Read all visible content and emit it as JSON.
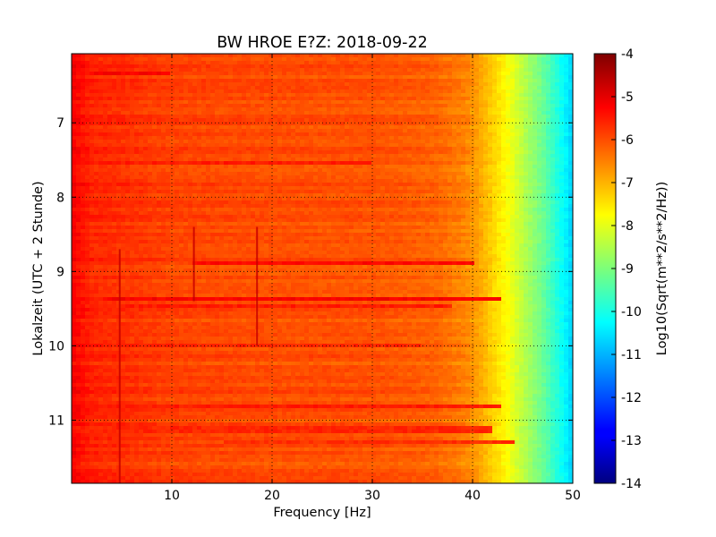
{
  "chart_data": {
    "type": "heatmap",
    "title": "BW HROE E?Z: 2018-09-22",
    "xlabel": "Frequency [Hz]",
    "ylabel": "Lokalzeit (UTC + 2 Stunde)",
    "xlim": [
      0,
      50
    ],
    "ylim": [
      11.85,
      6.07
    ],
    "xticks": [
      "10",
      "20",
      "30",
      "40",
      "50"
    ],
    "xtick_values": [
      10,
      20,
      30,
      40,
      50
    ],
    "yticks": [
      "7",
      "8",
      "9",
      "10",
      "11"
    ],
    "ytick_values": [
      7,
      8,
      9,
      10,
      11
    ],
    "grid": true,
    "colormap": "jet",
    "colorbar": {
      "label": "Log10(Sqrt(m**2/s**2/Hz))",
      "min": -14,
      "max": -4,
      "ticks": [
        "-4",
        "-5",
        "-6",
        "-7",
        "-8",
        "-9",
        "-10",
        "-11",
        "-12",
        "-13",
        "-14"
      ],
      "tick_values": [
        -4,
        -5,
        -6,
        -7,
        -8,
        -9,
        -10,
        -11,
        -12,
        -13,
        -14
      ]
    },
    "spectral_profile": {
      "frequency_hz": [
        0,
        0.5,
        2,
        5,
        10,
        20,
        30,
        36,
        39,
        40.5,
        42,
        43.5,
        45,
        47,
        49,
        50
      ],
      "log_amplitude": [
        -5.2,
        -5.3,
        -5.6,
        -5.7,
        -5.9,
        -6.0,
        -6.05,
        -6.2,
        -6.5,
        -6.8,
        -7.3,
        -7.8,
        -8.4,
        -9.2,
        -10.2,
        -10.7
      ]
    },
    "narrowband_lines": [
      {
        "frequency_hz": 4.8,
        "time_start": 8.7,
        "time_end": 11.85
      },
      {
        "frequency_hz": 12.2,
        "time_start": 8.4,
        "time_end": 9.4
      },
      {
        "frequency_hz": 18.5,
        "time_start": 8.4,
        "time_end": 10.0
      }
    ],
    "horizontal_bands": [
      {
        "time": 8.88,
        "f_start": 12,
        "f_end": 40,
        "intensity": -5.3
      },
      {
        "time": 9.38,
        "f_start": 3,
        "f_end": 43,
        "intensity": -5.2
      },
      {
        "time": 9.48,
        "f_start": 5,
        "f_end": 38,
        "intensity": -5.5
      },
      {
        "time": 10.0,
        "f_start": 0,
        "f_end": 35,
        "intensity": -5.6
      },
      {
        "time": 10.83,
        "f_start": 0,
        "f_end": 43,
        "intensity": -5.5
      },
      {
        "time": 11.13,
        "f_start": 0,
        "f_end": 42,
        "intensity": -5.6
      },
      {
        "time": 11.28,
        "f_start": 15,
        "f_end": 44,
        "intensity": -5.7
      },
      {
        "time": 7.55,
        "f_start": 0,
        "f_end": 30,
        "intensity": -5.5
      },
      {
        "time": 6.33,
        "f_start": 2,
        "f_end": 10,
        "intensity": -5.2
      }
    ]
  }
}
